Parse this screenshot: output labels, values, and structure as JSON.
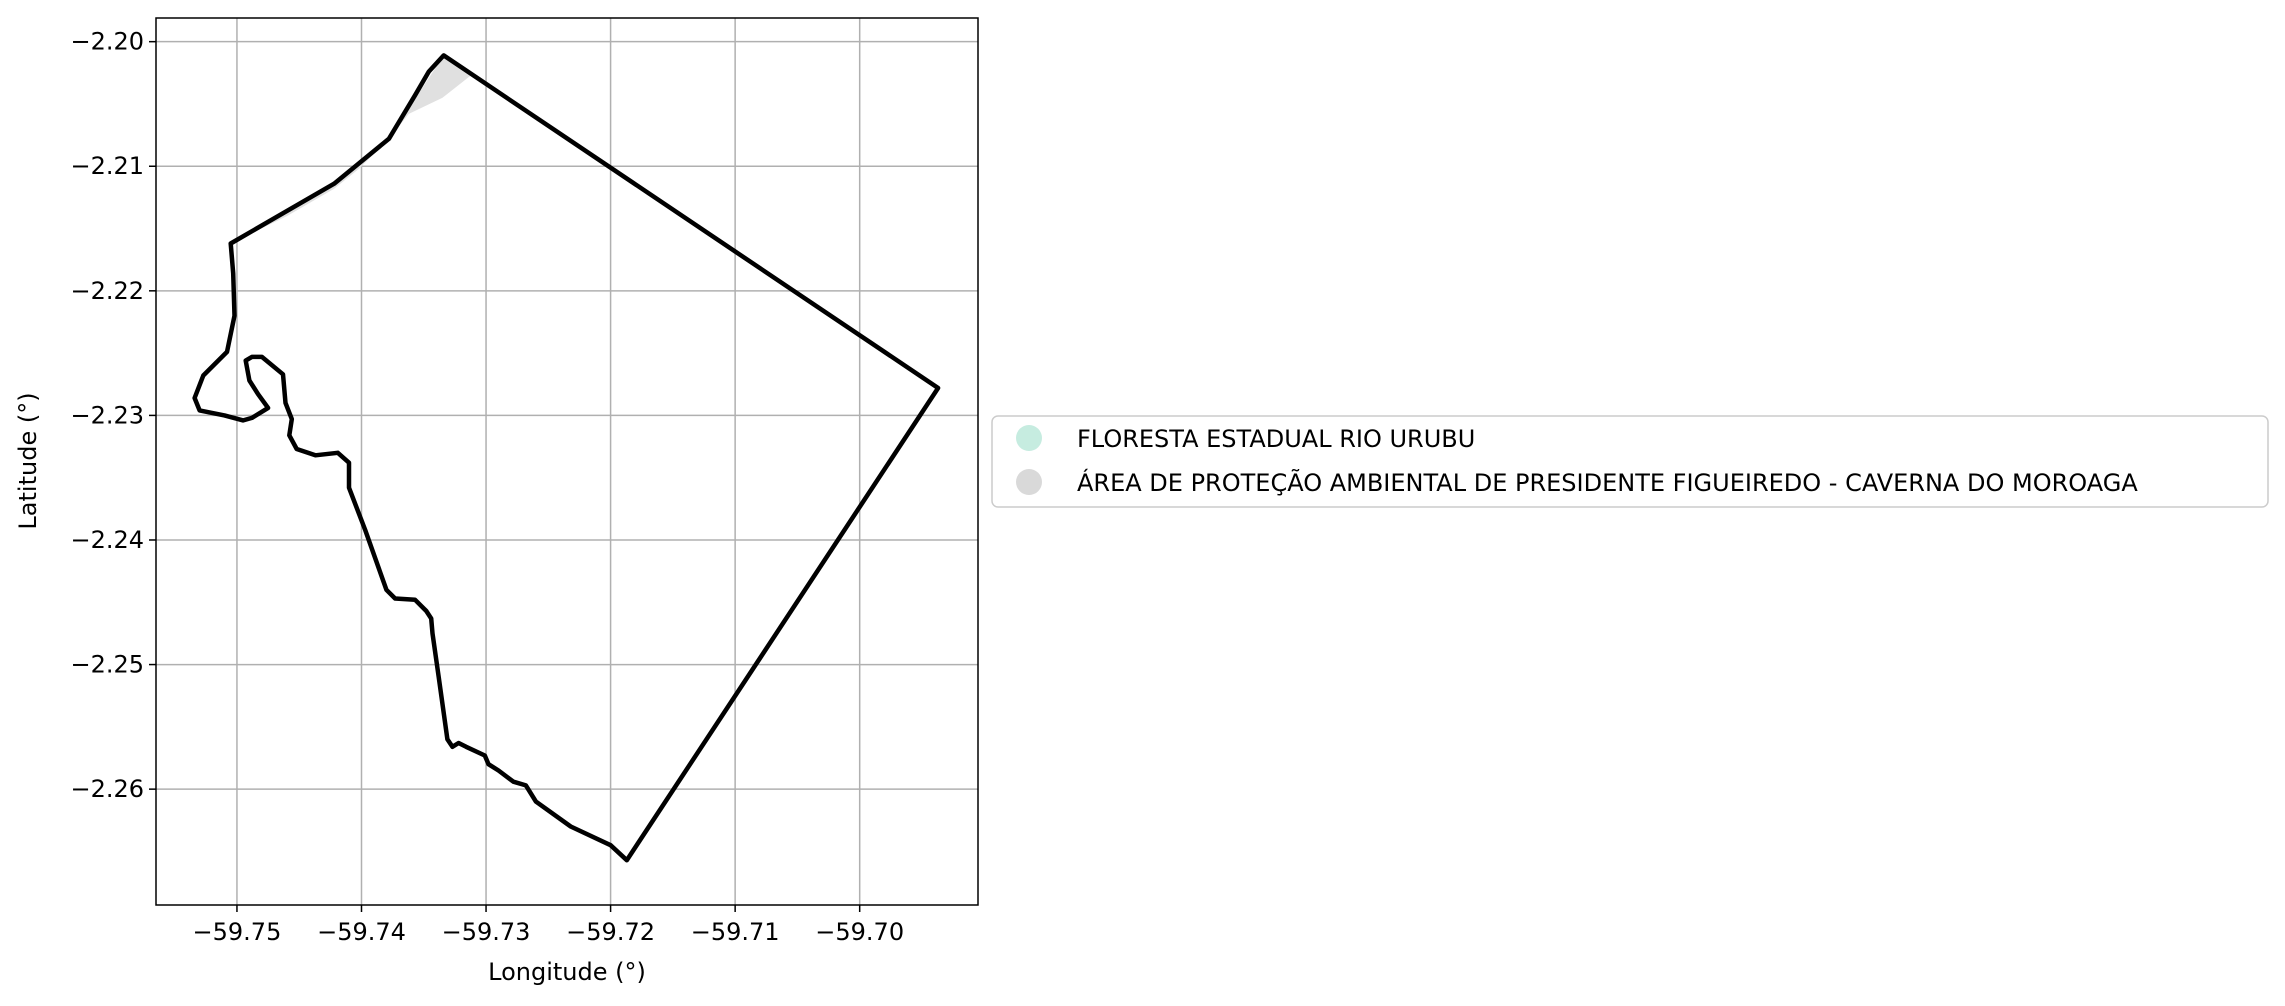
{
  "map": {
    "xlabel": "Longitude (°)",
    "ylabel": "Latitude (°)",
    "xlim": [
      -59.7565,
      -59.6905
    ],
    "ylim": [
      -2.2693,
      -2.1981
    ],
    "x_ticks": [
      -59.75,
      -59.74,
      -59.73,
      -59.72,
      -59.71,
      -59.7
    ],
    "x_tick_labels": [
      "−59.75",
      "−59.74",
      "−59.73",
      "−59.72",
      "−59.71",
      "−59.70"
    ],
    "y_ticks": [
      -2.2,
      -2.21,
      -2.22,
      -2.23,
      -2.24,
      -2.25,
      -2.26
    ],
    "y_tick_labels": [
      "−2.20",
      "−2.21",
      "−2.22",
      "−2.23",
      "−2.24",
      "−2.25",
      "−2.26"
    ],
    "grid": true,
    "legend": {
      "placement": "right-outside",
      "entries": [
        {
          "label": "FLORESTA ESTADUAL RIO URUBU",
          "color": "#c6ece0"
        },
        {
          "label": "ÁREA DE PROTEÇÃO AMBIENTAL DE PRESIDENTE FIGUEIREDO - CAVERNA DO MOROAGA",
          "color": "#d9d9d9"
        }
      ]
    },
    "shaded_area": {
      "color": "#e0e0e0",
      "coords": [
        [
          -59.7505,
          -2.2162
        ],
        [
          -59.7422,
          -2.2114
        ],
        [
          -59.7378,
          -2.2078
        ],
        [
          -59.7334,
          -2.2011
        ],
        [
          -59.7312,
          -2.2027
        ],
        [
          -59.7335,
          -2.2045
        ],
        [
          -59.7362,
          -2.2058
        ],
        [
          -59.7378,
          -2.2078
        ],
        [
          -59.7402,
          -2.2102
        ],
        [
          -59.7422,
          -2.2118
        ],
        [
          -59.746,
          -2.214
        ],
        [
          -59.7505,
          -2.2162
        ]
      ]
    },
    "boundary": {
      "color": "#000000",
      "coords": [
        [
          -59.7505,
          -2.2162
        ],
        [
          -59.7422,
          -2.2114
        ],
        [
          -59.7378,
          -2.2078
        ],
        [
          -59.7357,
          -2.2043
        ],
        [
          -59.7346,
          -2.2024
        ],
        [
          -59.7334,
          -2.2011
        ],
        [
          -59.6937,
          -2.2278
        ],
        [
          -59.7187,
          -2.2657
        ],
        [
          -59.72,
          -2.2645
        ],
        [
          -59.7232,
          -2.263
        ],
        [
          -59.726,
          -2.261
        ],
        [
          -59.7268,
          -2.2597
        ],
        [
          -59.7278,
          -2.2594
        ],
        [
          -59.729,
          -2.2585
        ],
        [
          -59.7298,
          -2.258
        ],
        [
          -59.7301,
          -2.2573
        ],
        [
          -59.7316,
          -2.2566
        ],
        [
          -59.7322,
          -2.2563
        ],
        [
          -59.7327,
          -2.2566
        ],
        [
          -59.7331,
          -2.256
        ],
        [
          -59.7338,
          -2.251
        ],
        [
          -59.7343,
          -2.2475
        ],
        [
          -59.7344,
          -2.2463
        ],
        [
          -59.7348,
          -2.2457
        ],
        [
          -59.7357,
          -2.2448
        ],
        [
          -59.7373,
          -2.2447
        ],
        [
          -59.738,
          -2.244
        ],
        [
          -59.7397,
          -2.2392
        ],
        [
          -59.741,
          -2.2358
        ],
        [
          -59.741,
          -2.2338
        ],
        [
          -59.7419,
          -2.233
        ],
        [
          -59.7437,
          -2.2332
        ],
        [
          -59.7452,
          -2.2327
        ],
        [
          -59.7458,
          -2.2316
        ],
        [
          -59.7456,
          -2.2303
        ],
        [
          -59.7461,
          -2.229
        ],
        [
          -59.7463,
          -2.2267
        ],
        [
          -59.748,
          -2.2253
        ],
        [
          -59.7488,
          -2.2253
        ],
        [
          -59.7493,
          -2.2256
        ],
        [
          -59.749,
          -2.2272
        ],
        [
          -59.7483,
          -2.2283
        ],
        [
          -59.7475,
          -2.2294
        ],
        [
          -59.7488,
          -2.2302
        ],
        [
          -59.7495,
          -2.2304
        ],
        [
          -59.751,
          -2.23
        ],
        [
          -59.753,
          -2.2296
        ],
        [
          -59.7534,
          -2.2286
        ],
        [
          -59.7527,
          -2.2268
        ],
        [
          -59.7508,
          -2.2249
        ],
        [
          -59.7502,
          -2.222
        ],
        [
          -59.7503,
          -2.2186
        ],
        [
          -59.7505,
          -2.2162
        ]
      ]
    }
  }
}
